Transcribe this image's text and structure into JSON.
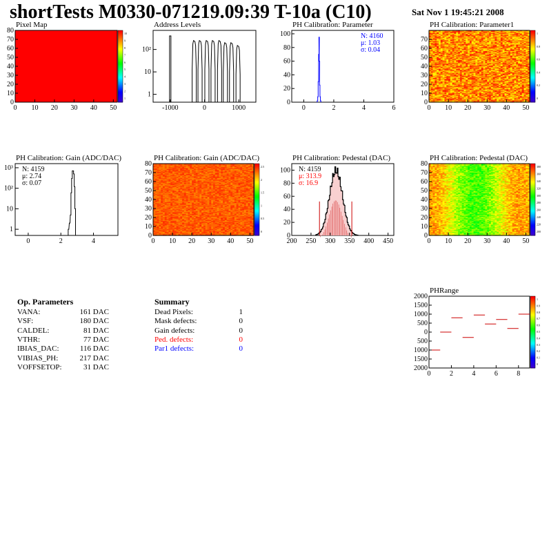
{
  "header": {
    "title": "shortTests M0330-071219.09:39 T-10a (C10)",
    "date": "Sat Nov  1 19:45:21 2008"
  },
  "colors": {
    "red": "#ff0000",
    "blue": "#0000ff",
    "palette_end": "#4400cc"
  },
  "chart_data": [
    {
      "id": "pixel-map",
      "type": "heatmap",
      "title": "Pixel Map",
      "x_ticks": [
        "0",
        "10",
        "20",
        "30",
        "40",
        "50"
      ],
      "y_ticks": [
        "0",
        "10",
        "20",
        "30",
        "40",
        "50",
        "60",
        "70",
        "80"
      ],
      "xlim": [
        0,
        52
      ],
      "ylim": [
        0,
        80
      ],
      "uniform_value": 10,
      "z_ticks": [
        "10",
        "9",
        "8",
        "7",
        "6",
        "5",
        "4",
        "3",
        "2",
        "1"
      ]
    },
    {
      "id": "address-levels",
      "type": "line",
      "title": "Address Levels",
      "log_y": true,
      "x_ticks": [
        "-1000",
        "0",
        "1000"
      ],
      "xlim": [
        -1500,
        1500
      ],
      "peaks_x": [
        -1000,
        -300,
        -130,
        70,
        250,
        440,
        610,
        790,
        980
      ],
      "peaks_height": [
        400,
        250,
        250,
        250,
        250,
        250,
        200,
        200,
        150
      ]
    },
    {
      "id": "ph-calibration-parameter",
      "type": "bar",
      "title": "PH Calibration: Parameter",
      "x_ticks": [
        "0",
        "2",
        "4",
        "6"
      ],
      "y_ticks": [
        "0",
        "20",
        "40",
        "60",
        "80",
        "100"
      ],
      "xlim": [
        -0.8,
        6
      ],
      "ylim": [
        0,
        105
      ],
      "stats": [
        {
          "label": "N: 4160"
        },
        {
          "label": "μ: 1.03"
        },
        {
          "label": "σ: 0.04"
        }
      ]
    },
    {
      "id": "ph-calibration-parameter1",
      "type": "heatmap",
      "title": "PH Calibration: Parameter1",
      "x_ticks": [
        "0",
        "10",
        "20",
        "30",
        "40",
        "50"
      ],
      "y_ticks": [
        "0",
        "10",
        "20",
        "30",
        "40",
        "50",
        "60",
        "70"
      ],
      "z_ticks": [
        "1",
        "0.8",
        "0.6",
        "0.4",
        "0.2",
        "0"
      ]
    },
    {
      "id": "ph-calibration-gain",
      "type": "bar",
      "title": "PH Calibration: Gain (ADC/DAC)",
      "log_y": true,
      "x_ticks": [
        "0",
        "2",
        "4"
      ],
      "xlim": [
        -0.8,
        5.5
      ],
      "stats": [
        {
          "label": "N: 4159"
        },
        {
          "label": "μ: 2.74"
        },
        {
          "label": "σ: 0.07"
        }
      ]
    },
    {
      "id": "ph-calibration-gain-map",
      "type": "heatmap",
      "title": "PH Calibration: Gain (ADC/DAC)",
      "x_ticks": [
        "0",
        "10",
        "20",
        "30",
        "40",
        "50"
      ],
      "y_ticks": [
        "0",
        "10",
        "20",
        "30",
        "40",
        "50",
        "60",
        "70",
        "80"
      ],
      "z_ticks": [
        "2.5",
        "2",
        "1.5",
        "1",
        "0.5",
        "0"
      ]
    },
    {
      "id": "ph-calibration-pedestal",
      "type": "bar",
      "title": "PH Calibration: Pedestal (DAC)",
      "x_ticks": [
        "200",
        "250",
        "300",
        "350",
        "400",
        "450"
      ],
      "y_ticks": [
        "0",
        "20",
        "40",
        "60",
        "80",
        "100"
      ],
      "xlim": [
        200,
        465
      ],
      "ylim": [
        0,
        110
      ],
      "stats": [
        {
          "label": "N: 4159"
        },
        {
          "label": "μ: 313.9"
        },
        {
          "label": "σ: 16.9"
        }
      ],
      "cut_lines": [
        272,
        356
      ]
    },
    {
      "id": "ph-calibration-pedestal-map",
      "type": "heatmap",
      "title": "PH Calibration: Pedestal (DAC)",
      "x_ticks": [
        "0",
        "10",
        "20",
        "30",
        "40",
        "50"
      ],
      "y_ticks": [
        "0",
        "10",
        "20",
        "30",
        "40",
        "50",
        "60",
        "70",
        "80"
      ],
      "z_ticks": [
        "380",
        "360",
        "340",
        "320",
        "300",
        "280",
        "260",
        "240",
        "220",
        "200"
      ]
    },
    {
      "id": "phrange",
      "type": "scatter",
      "title": "PHRange",
      "x_ticks": [
        "0",
        "2",
        "4",
        "6",
        "8"
      ],
      "y_ticks": [
        "-2000",
        "-1000",
        "0",
        "500",
        "1000",
        "1500",
        "2000"
      ],
      "xlim": [
        0,
        9
      ],
      "ylim": [
        -2000,
        2000
      ],
      "x": [
        0.5,
        1.5,
        2.5,
        3.5,
        4.5,
        5.5,
        6.5,
        7.5,
        8.5
      ],
      "y": [
        -1000,
        0,
        800,
        -300,
        950,
        450,
        700,
        200,
        1000
      ],
      "z_ticks": [
        "1",
        "0.9",
        "0.8",
        "0.7",
        "0.6",
        "0.5",
        "0.4",
        "0.3",
        "0.2",
        "0.1",
        "0"
      ]
    }
  ],
  "op_parameters": {
    "heading": "Op. Parameters",
    "rows": [
      {
        "name": "VANA:",
        "value": "161 DAC"
      },
      {
        "name": "VSF:",
        "value": "180 DAC"
      },
      {
        "name": "CALDEL:",
        "value": "81 DAC"
      },
      {
        "name": "VTHR:",
        "value": "77 DAC"
      },
      {
        "name": "IBIAS_DAC:",
        "value": "116 DAC"
      },
      {
        "name": "VIBIAS_PH:",
        "value": "217 DAC"
      },
      {
        "name": "VOFFSETOP:",
        "value": "31 DAC"
      }
    ]
  },
  "summary": {
    "heading": "Summary",
    "rows": [
      {
        "name": "Dead Pixels:",
        "value": "1",
        "color": "#000000"
      },
      {
        "name": "Mask defects:",
        "value": "0",
        "color": "#000000"
      },
      {
        "name": "Gain defects:",
        "value": "0",
        "color": "#000000"
      },
      {
        "name": "Ped. defects:",
        "value": "0",
        "color": "#ff0000"
      },
      {
        "name": "Par1 defects:",
        "value": "0",
        "color": "#0000ff"
      }
    ]
  }
}
